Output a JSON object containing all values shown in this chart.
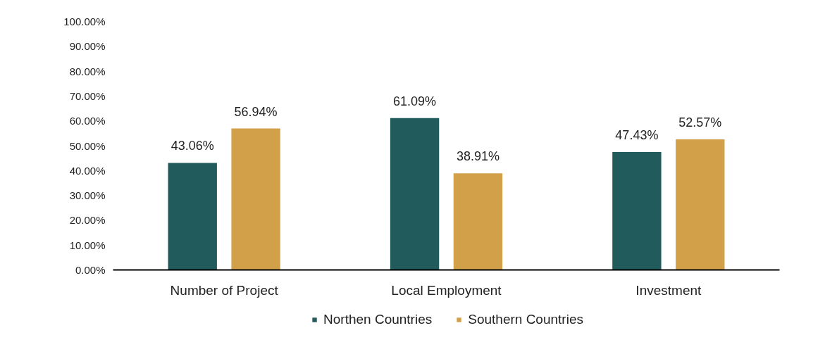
{
  "chart_data": {
    "type": "bar",
    "categories": [
      "Number of Project",
      "Local Employment",
      "Investment"
    ],
    "series": [
      {
        "name": "Northen Countries",
        "color": "#215b5b",
        "values": [
          43.06,
          61.09,
          47.43
        ],
        "value_labels": [
          "43.06%",
          "61.09%",
          "47.43%"
        ]
      },
      {
        "name": "Southern Countries",
        "color": "#d3a04a",
        "values": [
          56.94,
          38.91,
          52.57
        ],
        "value_labels": [
          "56.94%",
          "38.91%",
          "52.57%"
        ]
      }
    ],
    "ylim": [
      0,
      100
    ],
    "yticks": [
      {
        "value": 0,
        "label": "0.00%"
      },
      {
        "value": 10,
        "label": "10.00%"
      },
      {
        "value": 20,
        "label": "20.00%"
      },
      {
        "value": 30,
        "label": "30.00%"
      },
      {
        "value": 40,
        "label": "40.00%"
      },
      {
        "value": 50,
        "label": "50.00%"
      },
      {
        "value": 60,
        "label": "60.00%"
      },
      {
        "value": 70,
        "label": "70.00%"
      },
      {
        "value": 80,
        "label": "80.00%"
      },
      {
        "value": 90,
        "label": "90.00%"
      },
      {
        "value": 100,
        "label": "100.00%"
      }
    ],
    "grid": false,
    "legend": "bottom"
  }
}
